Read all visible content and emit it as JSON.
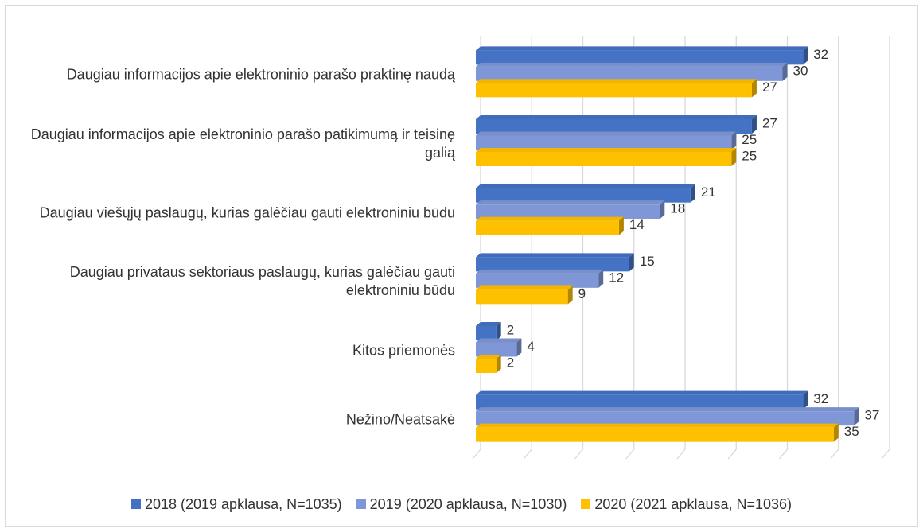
{
  "chart_data": {
    "type": "bar",
    "orientation": "horizontal",
    "categories": [
      "Daugiau informacijos apie elektroninio parašo praktinę naudą",
      "Daugiau informacijos apie elektroninio parašo patikimumą ir teisinę galią",
      "Daugiau viešųjų paslaugų, kurias galėčiau gauti elektroniniu būdu",
      "Daugiau privataus sektoriaus paslaugų, kurias galėčiau gauti elektroniniu būdu",
      "Kitos priemonės",
      "Nežino/Neatsakė"
    ],
    "series": [
      {
        "name": "2018 (2019 apklausa, N=1035)",
        "color": "#4472c4",
        "values": [
          32,
          27,
          21,
          15,
          2,
          32
        ]
      },
      {
        "name": "2019 (2020 apklausa, N=1030)",
        "color": "#7f97d6",
        "values": [
          30,
          25,
          18,
          12,
          4,
          37
        ]
      },
      {
        "name": "2020 (2021 apklausa, N=1036)",
        "color": "#ffc000",
        "values": [
          27,
          25,
          14,
          9,
          2,
          35
        ]
      }
    ],
    "xlim": [
      0,
      40
    ],
    "xticks": [
      0,
      5,
      10,
      15,
      20,
      25,
      30,
      35,
      40
    ],
    "grid": true,
    "legend": "bottom"
  }
}
